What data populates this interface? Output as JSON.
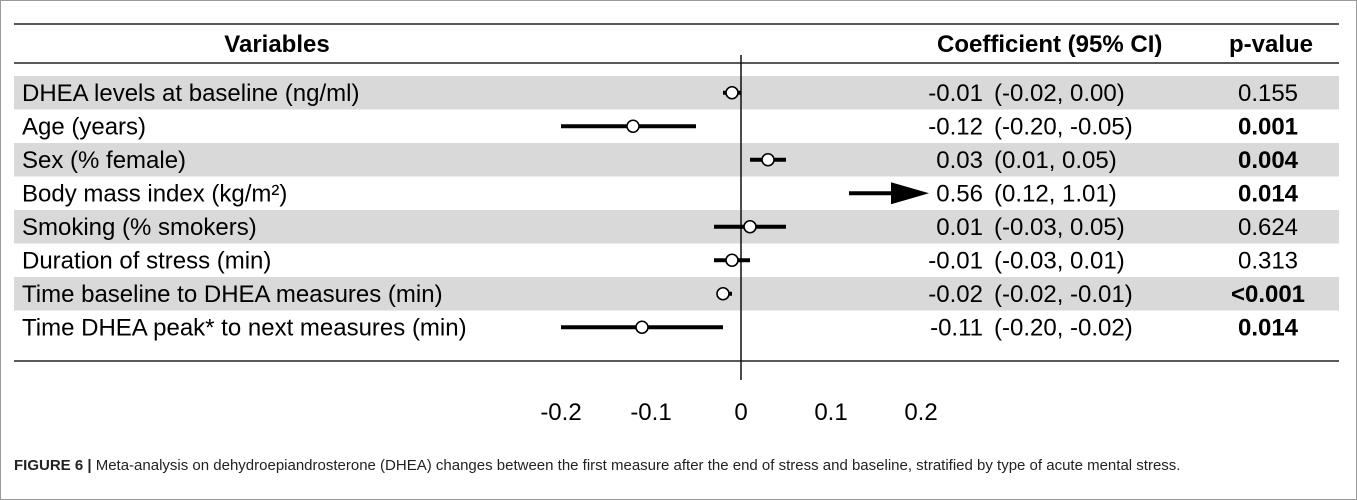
{
  "chart_data": {
    "type": "forest",
    "headers": {
      "variables": "Variables",
      "coefficient": "Coefficient (95% CI)",
      "pvalue": "p-value"
    },
    "rows": [
      {
        "label": "DHEA levels at baseline (ng/ml)",
        "coef": -0.01,
        "lo": -0.02,
        "hi": 0.0,
        "coef_text": "-0.01",
        "ci_text": "(-0.02, 0.00)",
        "p": "0.155",
        "p_bold": false,
        "shaded": true
      },
      {
        "label": "Age (years)",
        "coef": -0.12,
        "lo": -0.2,
        "hi": -0.05,
        "coef_text": "-0.12",
        "ci_text": "(-0.20, -0.05)",
        "p": "0.001",
        "p_bold": true,
        "shaded": false
      },
      {
        "label": "Sex (% female)",
        "coef": 0.03,
        "lo": 0.01,
        "hi": 0.05,
        "coef_text": "0.03",
        "ci_text": "(0.01, 0.05)",
        "p": "0.004",
        "p_bold": true,
        "shaded": true
      },
      {
        "label": "Body mass index (kg/m²)",
        "coef": 0.56,
        "lo": 0.12,
        "hi": 1.01,
        "coef_text": "0.56",
        "ci_text": "(0.12, 1.01)",
        "p": "0.014",
        "p_bold": true,
        "shaded": false
      },
      {
        "label": "Smoking (% smokers)",
        "coef": 0.01,
        "lo": -0.03,
        "hi": 0.05,
        "coef_text": "0.01",
        "ci_text": "(-0.03, 0.05)",
        "p": "0.624",
        "p_bold": false,
        "shaded": true
      },
      {
        "label": "Duration of stress (min)",
        "coef": -0.01,
        "lo": -0.03,
        "hi": 0.01,
        "coef_text": "-0.01",
        "ci_text": "(-0.03, 0.01)",
        "p": "0.313",
        "p_bold": false,
        "shaded": false
      },
      {
        "label": "Time baseline to DHEA measures (min)",
        "coef": -0.02,
        "lo": -0.02,
        "hi": -0.01,
        "coef_text": "-0.02",
        "ci_text": "(-0.02, -0.01)",
        "p": "<0.001",
        "p_bold": true,
        "shaded": true
      },
      {
        "label": "Time DHEA peak* to next measures (min)",
        "coef": -0.11,
        "lo": -0.2,
        "hi": -0.02,
        "coef_text": "-0.11",
        "ci_text": "(-0.20, -0.02)",
        "p": "0.014",
        "p_bold": true,
        "shaded": false
      }
    ],
    "xaxis": {
      "ticks": [
        -0.2,
        -0.1,
        0,
        0.1,
        0.2
      ],
      "tick_labels": [
        "-0.2",
        "-0.1",
        "0",
        "0.1",
        "0.2"
      ],
      "xlim": [
        -0.2,
        0.2
      ]
    },
    "colors": {
      "shade": "#d9d9d9",
      "marker": "#000000"
    }
  },
  "caption": {
    "label": "FIGURE 6 |",
    "text": " Meta-analysis on dehydroepiandrosterone (DHEA) changes between the first measure after the end of stress and baseline, stratified by type of acute mental stress."
  }
}
